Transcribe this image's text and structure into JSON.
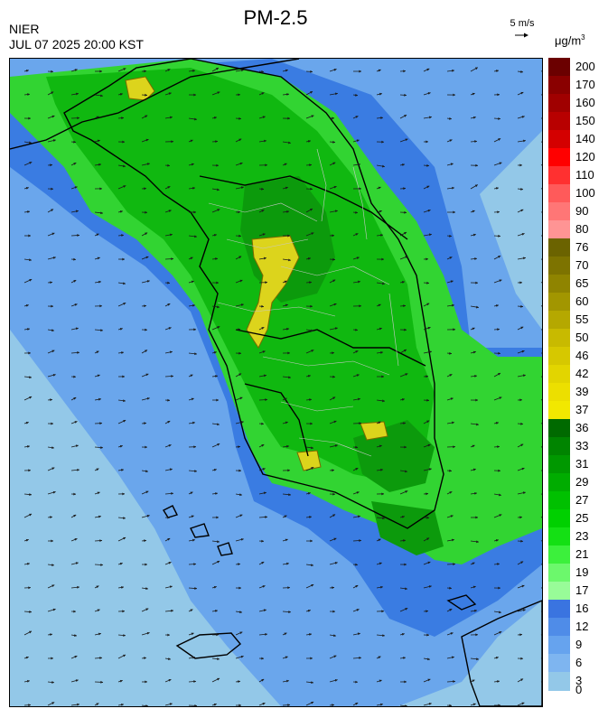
{
  "header": {
    "agency": "NIER",
    "timestamp": "JUL 07 2025 20:00 KST",
    "title": "PM-2.5"
  },
  "wind_reference": {
    "label": "5 m/s",
    "arrow_glyph": "→",
    "icon": "wind-reference-arrow-icon"
  },
  "legend": {
    "unit_base": "μg/m",
    "unit_exp": "3",
    "labels": [
      "200",
      "170",
      "160",
      "150",
      "140",
      "120",
      "110",
      "100",
      "90",
      "80",
      "76",
      "70",
      "65",
      "60",
      "55",
      "50",
      "46",
      "42",
      "39",
      "37",
      "36",
      "33",
      "31",
      "29",
      "27",
      "25",
      "23",
      "21",
      "19",
      "17",
      "16",
      "12",
      "9",
      "6",
      "3",
      "0"
    ],
    "colors": [
      "#6b0000",
      "#8a0000",
      "#a00000",
      "#b80000",
      "#d40000",
      "#ff0000",
      "#ff3030",
      "#ff5a5a",
      "#ff7676",
      "#ff9494",
      "#6b6300",
      "#7d7300",
      "#8f8400",
      "#a29600",
      "#b5a800",
      "#c8ba00",
      "#d6c800",
      "#e2d500",
      "#ecdf00",
      "#f2e800",
      "#006a00",
      "#008400",
      "#009800",
      "#00ac00",
      "#00c000",
      "#00d000",
      "#14e014",
      "#3cf03c",
      "#6cf86c",
      "#98fc98",
      "#3a74e0",
      "#4f8ce8",
      "#66a3ee",
      "#7eb5f0",
      "#93c8e8"
    ],
    "colors_note": "",
    "accent": "#000000"
  },
  "map": {
    "ocean_color": "#93c8e8",
    "near_sea_color": "#6aa6ec",
    "coastal_color": "#3a7ce2",
    "land_low_color": "#32d432",
    "land_mid_color": "#10b810",
    "land_high_color": "#0c9a0c",
    "hotspot_color": "#dcd41c",
    "hotspot_outline": "#7a6a00",
    "boundary_color": "#000000",
    "district_color": "#c8c8c8",
    "wind_arrow_color": "#1a1a1a"
  }
}
